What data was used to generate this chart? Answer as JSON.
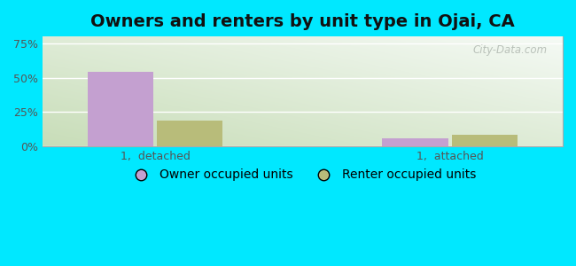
{
  "title": "Owners and renters by unit type in Ojai, CA",
  "groups": [
    "1,  detached",
    "1,  attached"
  ],
  "series": [
    "Owner occupied units",
    "Renter occupied units"
  ],
  "values": {
    "Owner occupied units": [
      54.0,
      6.0
    ],
    "Renter occupied units": [
      19.0,
      8.5
    ]
  },
  "colors": {
    "Owner occupied units": "#c4a0d0",
    "Renter occupied units": "#b8bc7a"
  },
  "yticks": [
    0,
    25,
    50,
    75
  ],
  "ytick_labels": [
    "0%",
    "25%",
    "50%",
    "75%"
  ],
  "ylim": [
    0,
    80
  ],
  "bar_width": 0.38,
  "background_color": "#00e8ff",
  "plot_bg_top_right": "#f5faf5",
  "plot_bg_bottom_left": "#c8ddb8",
  "watermark": "City-Data.com",
  "title_fontsize": 14,
  "tick_fontsize": 9,
  "legend_fontsize": 10,
  "group_positions": [
    0.65,
    2.35
  ]
}
